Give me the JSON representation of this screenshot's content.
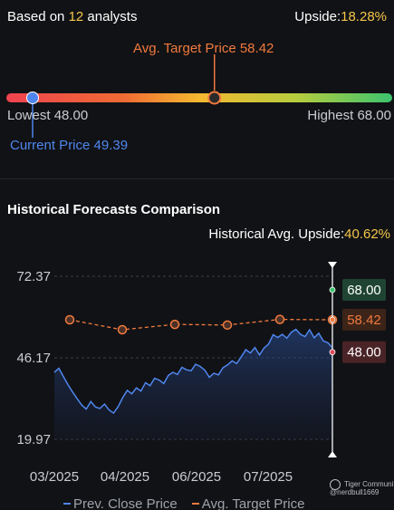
{
  "summary": {
    "prefix": "Based on ",
    "analyst_count": "12",
    "suffix": " analysts",
    "upside_label": "Upside:",
    "upside_value": "18.28%"
  },
  "target": {
    "avg_label": "Avg. Target Price 58.42",
    "low_label": "Lowest 48.00",
    "high_label": "Highest 68.00",
    "current_label": "Current Price 49.39",
    "low": 48.0,
    "high": 68.0,
    "avg": 58.42,
    "current": 49.39
  },
  "historical": {
    "title": "Historical Forecasts Comparison",
    "upside_label": "Historical Avg. Upside:",
    "upside_value": "40.62%"
  },
  "chart_data": {
    "type": "line",
    "title": "Historical Forecasts Comparison",
    "y_ticks": [
      "72.37",
      "46.17",
      "19.97"
    ],
    "ylim": [
      19.97,
      72.37
    ],
    "x_ticks": [
      "03/2025",
      "04/2025",
      "06/2025",
      "07/2025"
    ],
    "right_labels": [
      "68.00",
      "58.42",
      "48.00"
    ],
    "series": [
      {
        "name": "Prev. Close Price",
        "color": "#4f86ee",
        "values": [
          41.5,
          42.8,
          40.1,
          37.5,
          35.2,
          33.0,
          31.0,
          29.7,
          32.1,
          30.4,
          29.9,
          31.3,
          29.4,
          28.4,
          30.5,
          33.4,
          35.7,
          34.6,
          36.5,
          35.5,
          38.2,
          37.2,
          39.6,
          39.0,
          37.9,
          40.5,
          41.5,
          40.8,
          43.1,
          42.3,
          42.0,
          44.1,
          43.4,
          42.2,
          39.9,
          41.2,
          40.7,
          43.0,
          43.9,
          45.2,
          44.3,
          46.5,
          48.8,
          47.7,
          49.5,
          47.1,
          49.3,
          50.6,
          53.6,
          52.7,
          53.7,
          52.5,
          54.4,
          55.3,
          53.7,
          53.0,
          55.2,
          52.6,
          54.1,
          51.6,
          51.0,
          49.4
        ]
      },
      {
        "name": "Avg. Target Price",
        "color": "#f07a3e",
        "values": [
          58.4,
          55.2,
          56.9,
          56.7,
          58.5,
          58.4
        ]
      }
    ]
  },
  "legend": {
    "close_label": "Prev. Close Price",
    "target_label": "Avg. Target Price"
  },
  "watermark": {
    "brand": "Tiger Community",
    "user": "@nerdbull1669"
  }
}
